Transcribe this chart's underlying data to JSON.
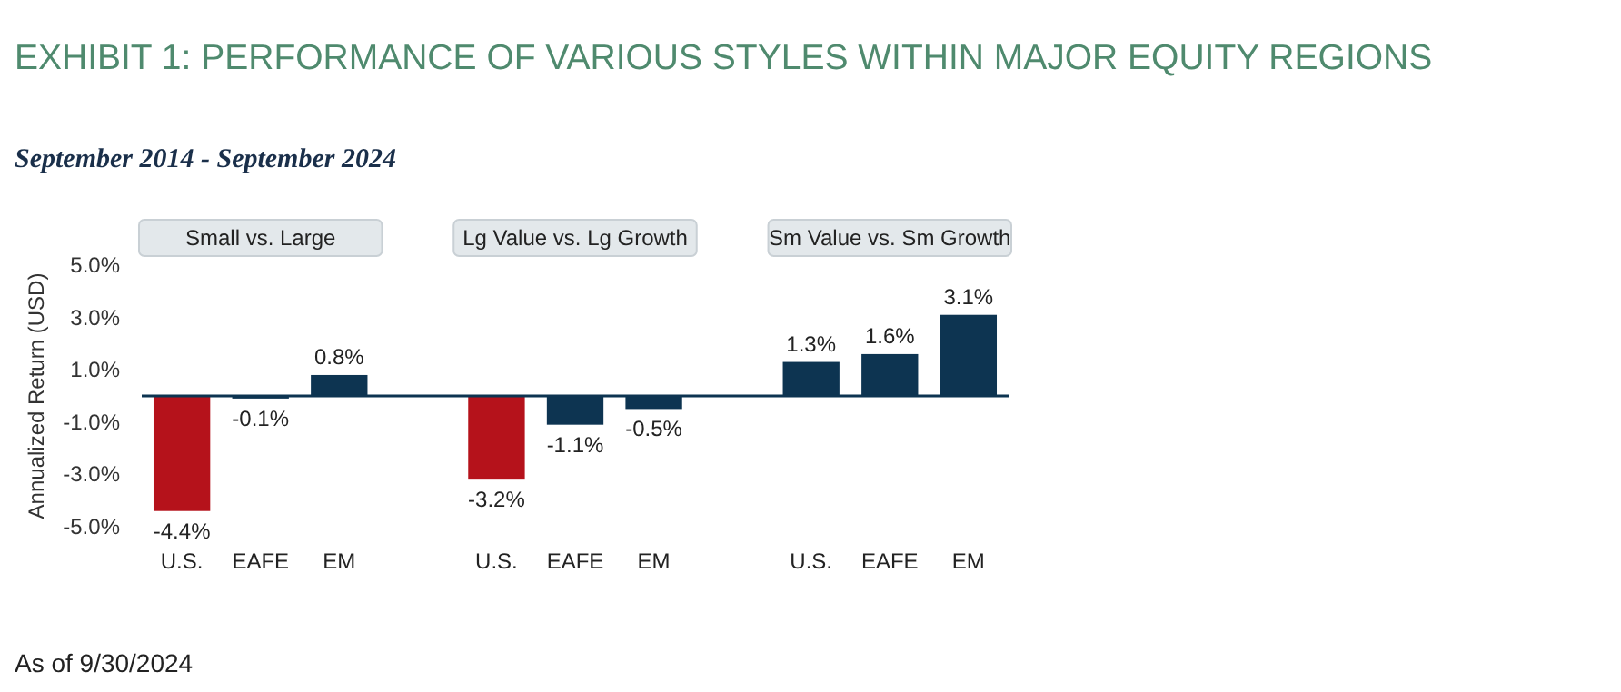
{
  "chart_data": {
    "type": "bar",
    "title": "EXHIBIT 1: PERFORMANCE OF VARIOUS STYLES WITHIN MAJOR EQUITY REGIONS",
    "subtitle": "September 2014 - September 2024",
    "ylabel": "Annualized Return (USD)",
    "categories": [
      "U.S.",
      "EAFE",
      "EM",
      null,
      "U.S.",
      "EAFE",
      "EM",
      null,
      "U.S.",
      "EAFE",
      "EM"
    ],
    "values": [
      -4.4,
      -0.1,
      0.8,
      null,
      -3.2,
      -1.1,
      -0.5,
      null,
      1.3,
      1.6,
      3.1
    ],
    "colors": [
      "#b5121b",
      "#0d3451",
      "#0d3451",
      null,
      "#b5121b",
      "#0d3451",
      "#0d3451",
      null,
      "#0d3451",
      "#0d3451",
      "#0d3451"
    ],
    "value_labels": [
      "-4.4%",
      "-0.1%",
      "0.8%",
      null,
      "-3.2%",
      "-1.1%",
      "-0.5%",
      null,
      "1.3%",
      "1.6%",
      "3.1%"
    ],
    "ylim": [
      -5,
      5
    ],
    "yticks": [
      {
        "value": 5,
        "label": "5.0%"
      },
      {
        "value": 3,
        "label": "3.0%"
      },
      {
        "value": 1,
        "label": "1.0%"
      },
      {
        "value": -1,
        "label": "-1.0%"
      },
      {
        "value": -3,
        "label": "-3.0%"
      },
      {
        "value": -5,
        "label": "-5.0%"
      }
    ],
    "annotations": [
      "Small vs. Large",
      "Lg Value vs. Lg Growth",
      "Sm Value vs. Sm Growth",
      "As of 9/30/2024"
    ]
  }
}
